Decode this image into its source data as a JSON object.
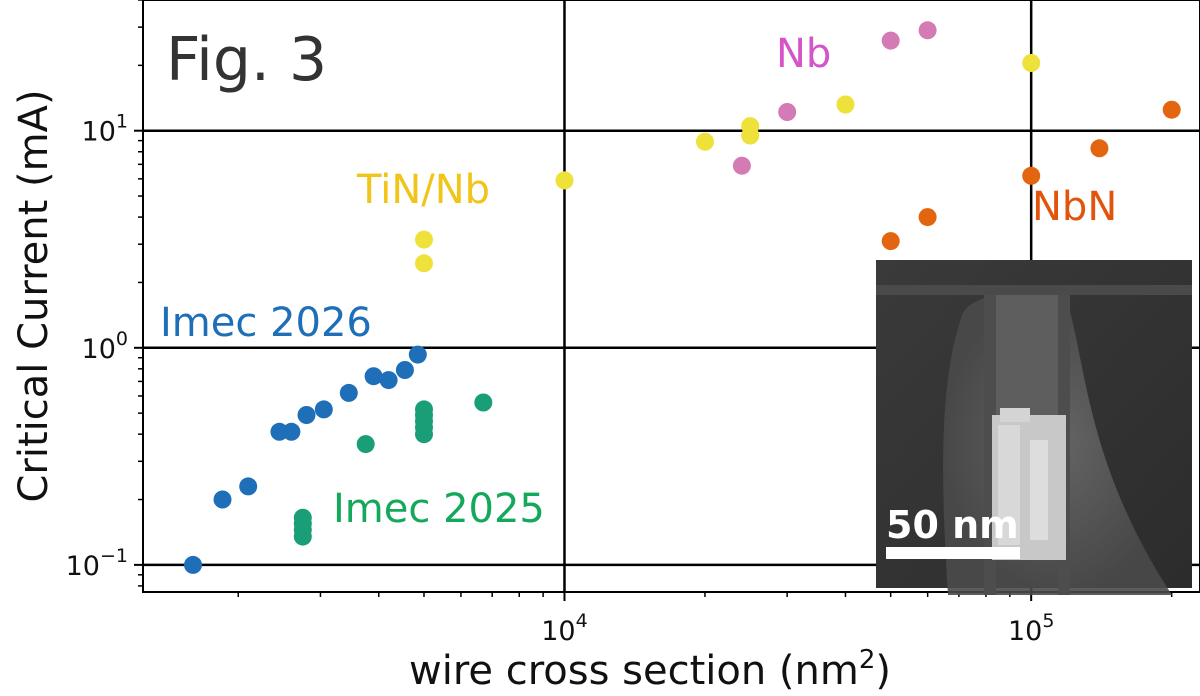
{
  "chart_data": {
    "type": "scatter",
    "figure_label": "Fig. 3",
    "xlabel": "wire cross section (nm",
    "xlabel_sup": "2",
    "xlabel_end": ")",
    "ylabel": "Critical Current (mA)",
    "x_scale": "log",
    "y_scale": "log",
    "xlim": [
      1250,
      230000
    ],
    "ylim": [
      0.075,
      40
    ],
    "grid": true,
    "x_ticks": [
      {
        "value": 10000,
        "base": "10",
        "exp": "4"
      },
      {
        "value": 100000,
        "base": "10",
        "exp": "5"
      }
    ],
    "y_ticks": [
      {
        "value": 0.1,
        "base": "10",
        "exp": "−1"
      },
      {
        "value": 1,
        "base": "10",
        "exp": "0"
      },
      {
        "value": 10,
        "base": "10",
        "exp": "1"
      }
    ],
    "series": [
      {
        "name": "Imec 2026",
        "color": "#1f6fb8",
        "points": [
          [
            1600,
            0.1
          ],
          [
            1850,
            0.2
          ],
          [
            2100,
            0.23
          ],
          [
            2450,
            0.41
          ],
          [
            2600,
            0.41
          ],
          [
            2800,
            0.49
          ],
          [
            3050,
            0.52
          ],
          [
            3450,
            0.62
          ],
          [
            3900,
            0.74
          ],
          [
            4200,
            0.71
          ],
          [
            4550,
            0.79
          ],
          [
            4850,
            0.93
          ]
        ]
      },
      {
        "name": "Imec 2025",
        "color": "#1a9e77",
        "points": [
          [
            2750,
            0.135
          ],
          [
            2750,
            0.145
          ],
          [
            2750,
            0.155
          ],
          [
            2750,
            0.165
          ],
          [
            3750,
            0.36
          ],
          [
            5000,
            0.4
          ],
          [
            5000,
            0.43
          ],
          [
            5000,
            0.46
          ],
          [
            5000,
            0.49
          ],
          [
            5000,
            0.52
          ],
          [
            6700,
            0.56
          ]
        ]
      },
      {
        "name": "TiN/Nb",
        "color": "#eee13a",
        "points": [
          [
            5000,
            2.45
          ],
          [
            5000,
            3.15
          ],
          [
            10000,
            5.9
          ],
          [
            20000,
            8.9
          ],
          [
            25000,
            9.5
          ],
          [
            25000,
            10.5
          ],
          [
            40000,
            13.2
          ],
          [
            100000,
            20.5
          ]
        ]
      },
      {
        "name": "Nb",
        "color": "#d47ab4",
        "points": [
          [
            24000,
            6.9
          ],
          [
            30000,
            12.2
          ],
          [
            50000,
            26
          ],
          [
            60000,
            29
          ]
        ]
      },
      {
        "name": "NbN",
        "color": "#e3650f",
        "points": [
          [
            50000,
            3.1
          ],
          [
            60000,
            4.0
          ],
          [
            100000,
            6.2
          ],
          [
            140000,
            8.3
          ],
          [
            200000,
            12.5
          ]
        ]
      }
    ],
    "annotations": [
      {
        "text": "Imec 2026",
        "color": "#1f6fb8"
      },
      {
        "text": "Imec 2025",
        "color": "#14a85a"
      },
      {
        "text": "TiN/Nb",
        "color": "#f0c419"
      },
      {
        "text": "Nb",
        "color": "#d455c8"
      },
      {
        "text": "NbN",
        "color": "#e2540c"
      }
    ],
    "inset": {
      "description_visible": "SEM cross-section micrograph",
      "scale_bar_label": "50 nm"
    }
  }
}
